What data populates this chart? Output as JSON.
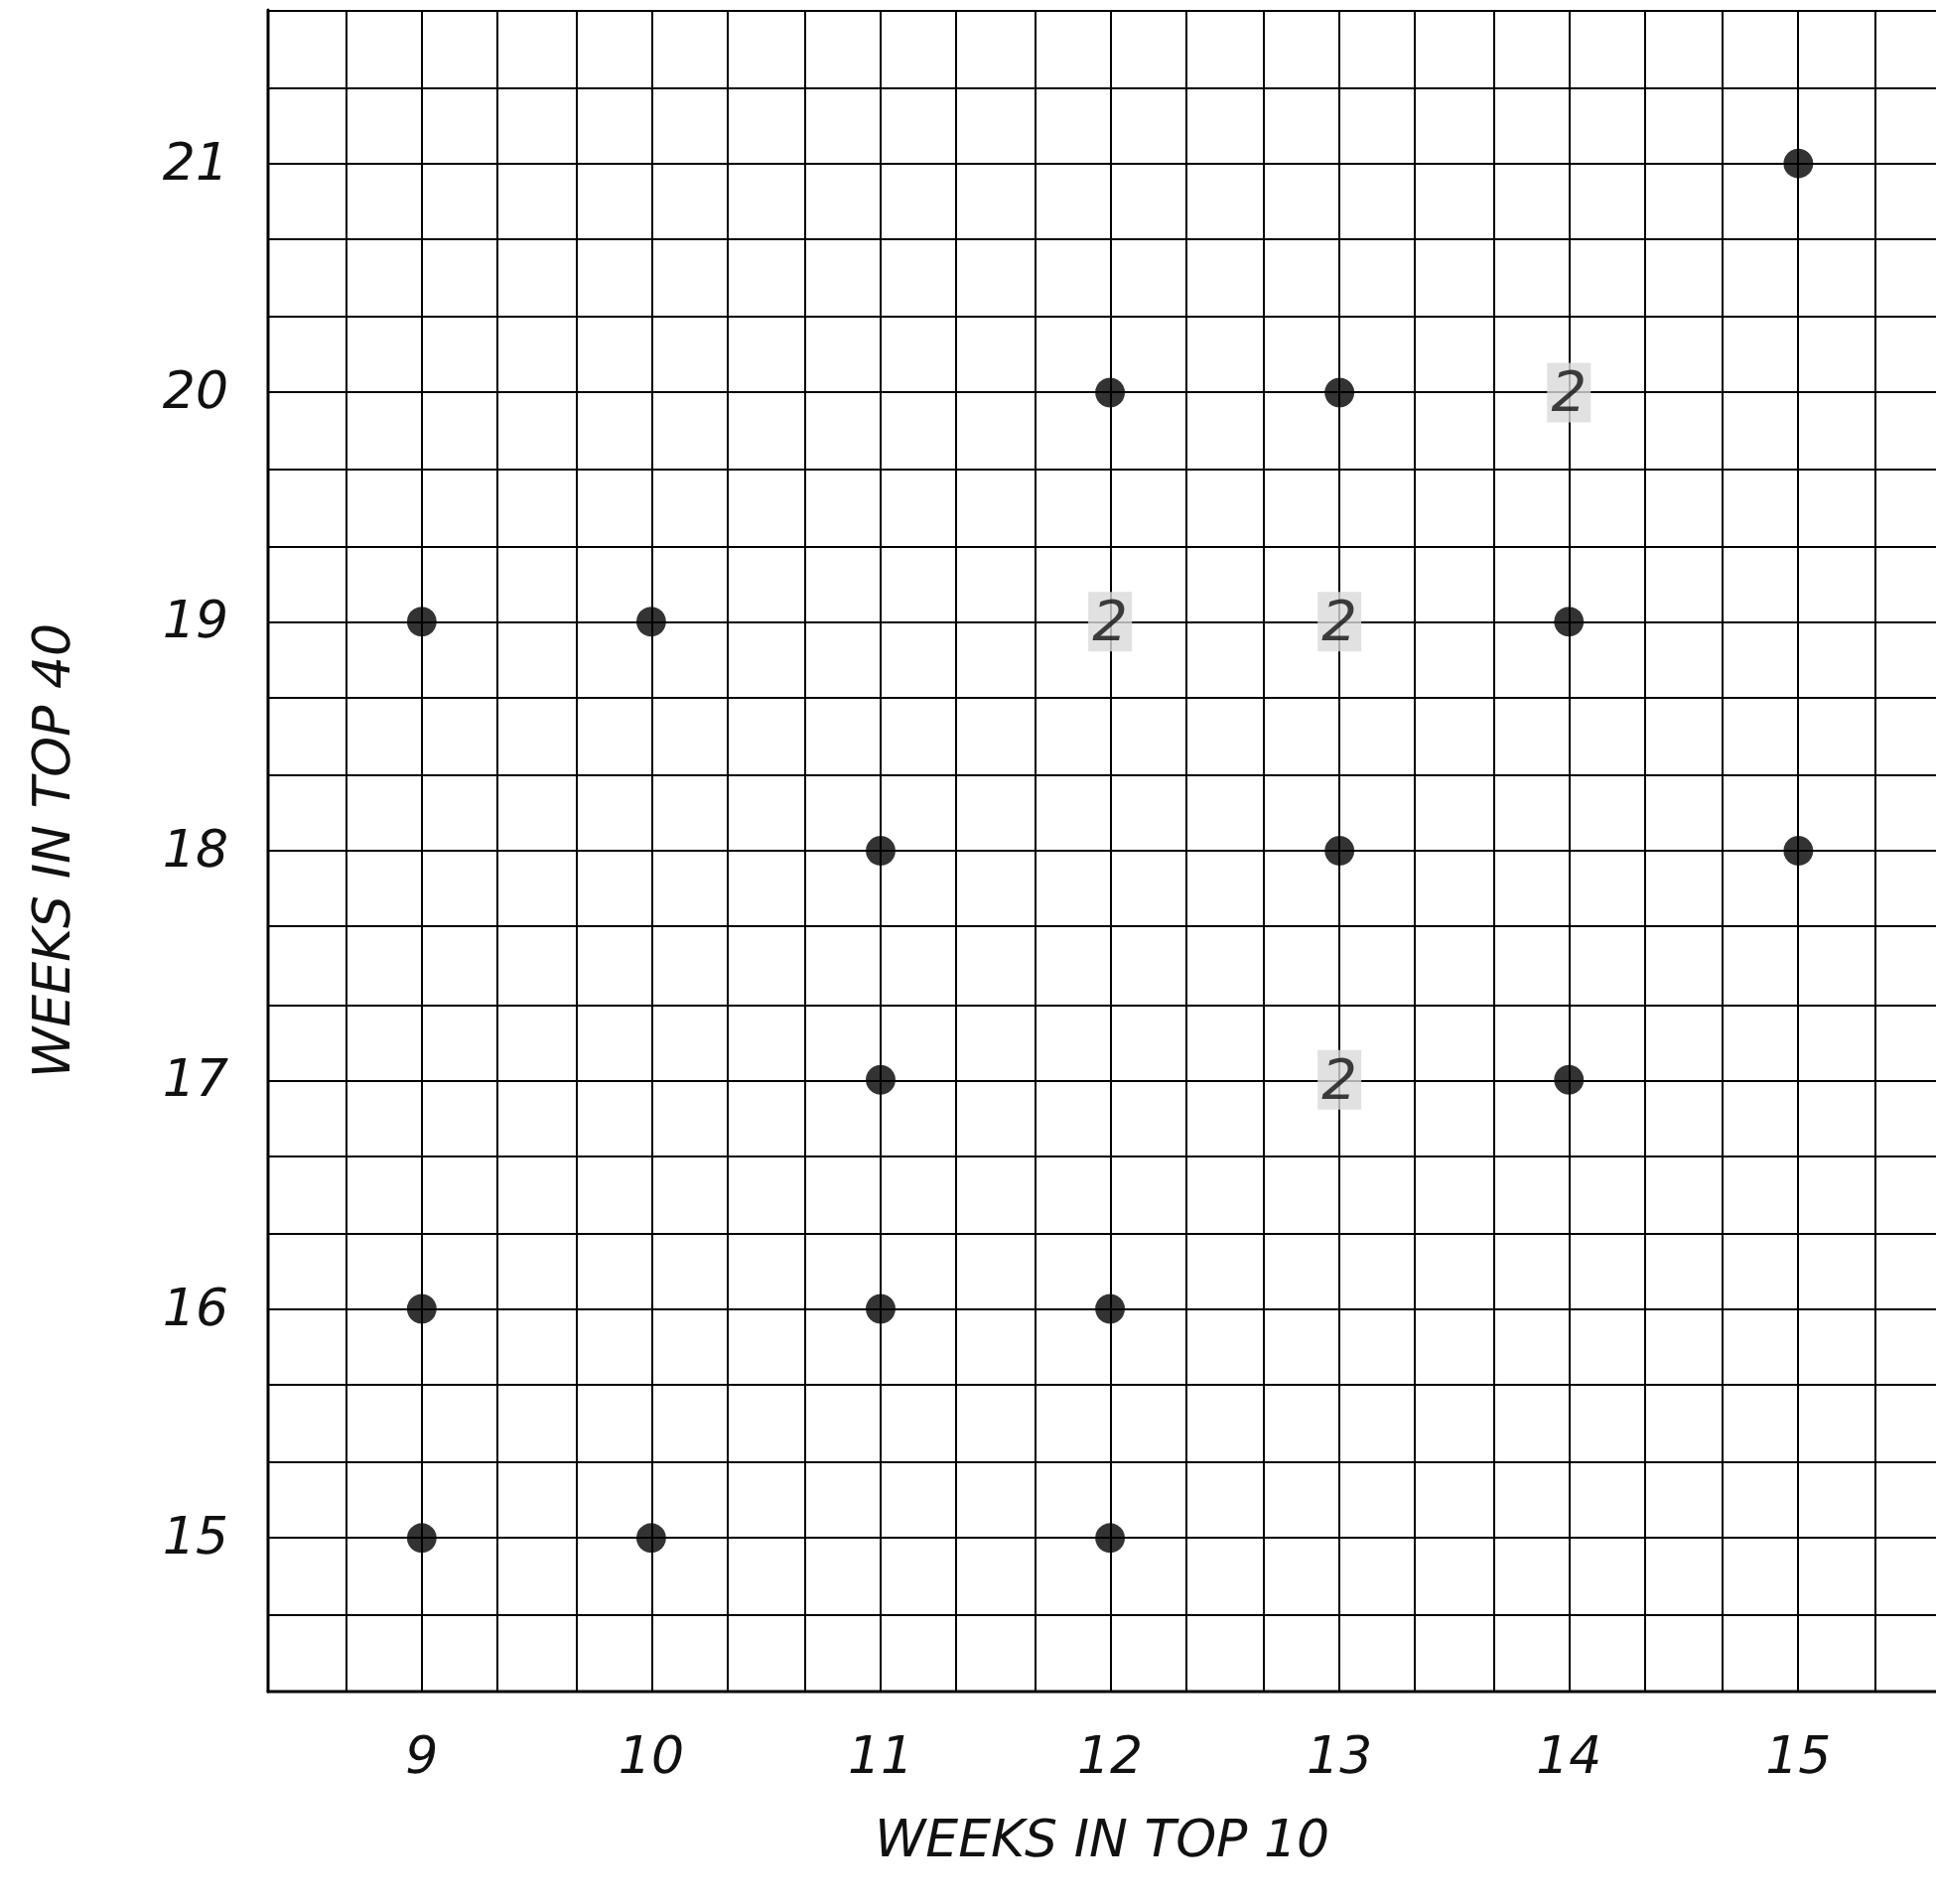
{
  "chart_data": {
    "type": "scatter",
    "xlabel": "WEEKS IN TOP 10",
    "ylabel": "WEEKS IN TOP 40",
    "marker": "circle",
    "grid": true,
    "xlim": [
      8.33,
      15.6
    ],
    "ylim": [
      14.33,
      21.67
    ],
    "xticks": [
      {
        "value": 8.67,
        "label": null
      },
      9,
      {
        "value": 9.33,
        "label": null
      },
      {
        "value": 9.67,
        "label": null
      },
      10,
      {
        "value": 10.33,
        "label": null
      },
      {
        "value": 10.67,
        "label": null
      },
      11,
      {
        "value": 11.33,
        "label": null
      },
      {
        "value": 11.67,
        "label": null
      },
      12,
      {
        "value": 12.33,
        "label": null
      },
      {
        "value": 12.67,
        "label": null
      },
      13,
      {
        "value": 13.33,
        "label": null
      },
      {
        "value": 13.67,
        "label": null
      },
      14,
      {
        "value": 14.33,
        "label": null
      },
      {
        "value": 14.67,
        "label": null
      },
      15,
      {
        "value": 15.33,
        "label": null
      }
    ],
    "yticks": [
      {
        "value": 14.67,
        "label": null
      },
      15,
      {
        "value": 15.33,
        "label": null
      },
      {
        "value": 15.67,
        "label": null
      },
      16,
      {
        "value": 16.33,
        "label": null
      },
      {
        "value": 16.67,
        "label": null
      },
      17,
      {
        "value": 17.33,
        "label": null
      },
      {
        "value": 17.67,
        "label": null
      },
      18,
      {
        "value": 18.33,
        "label": null
      },
      {
        "value": 18.67,
        "label": null
      },
      19,
      {
        "value": 19.33,
        "label": null
      },
      {
        "value": 19.67,
        "label": null
      },
      20,
      {
        "value": 20.33,
        "label": null
      },
      {
        "value": 20.67,
        "label": null
      },
      21,
      {
        "value": 21.33,
        "label": null
      },
      {
        "value": 21.67,
        "label": null
      }
    ],
    "series": [
      {
        "color": "#000000",
        "x": [
          9,
          10,
          12,
          13,
          14,
          15,
          11,
          13,
          15,
          11,
          14,
          9,
          11,
          12,
          9,
          10,
          12
        ],
        "values": [
          19,
          19,
          20,
          20,
          19,
          21,
          18,
          18,
          18,
          17,
          17,
          16,
          16,
          16,
          15,
          15,
          15
        ]
      },
      {
        "name": "2",
        "color": "#d9d9d9",
        "marker": "square",
        "x": [
          14,
          12,
          13,
          13
        ],
        "values": [
          20,
          19,
          19,
          17
        ]
      }
    ]
  }
}
